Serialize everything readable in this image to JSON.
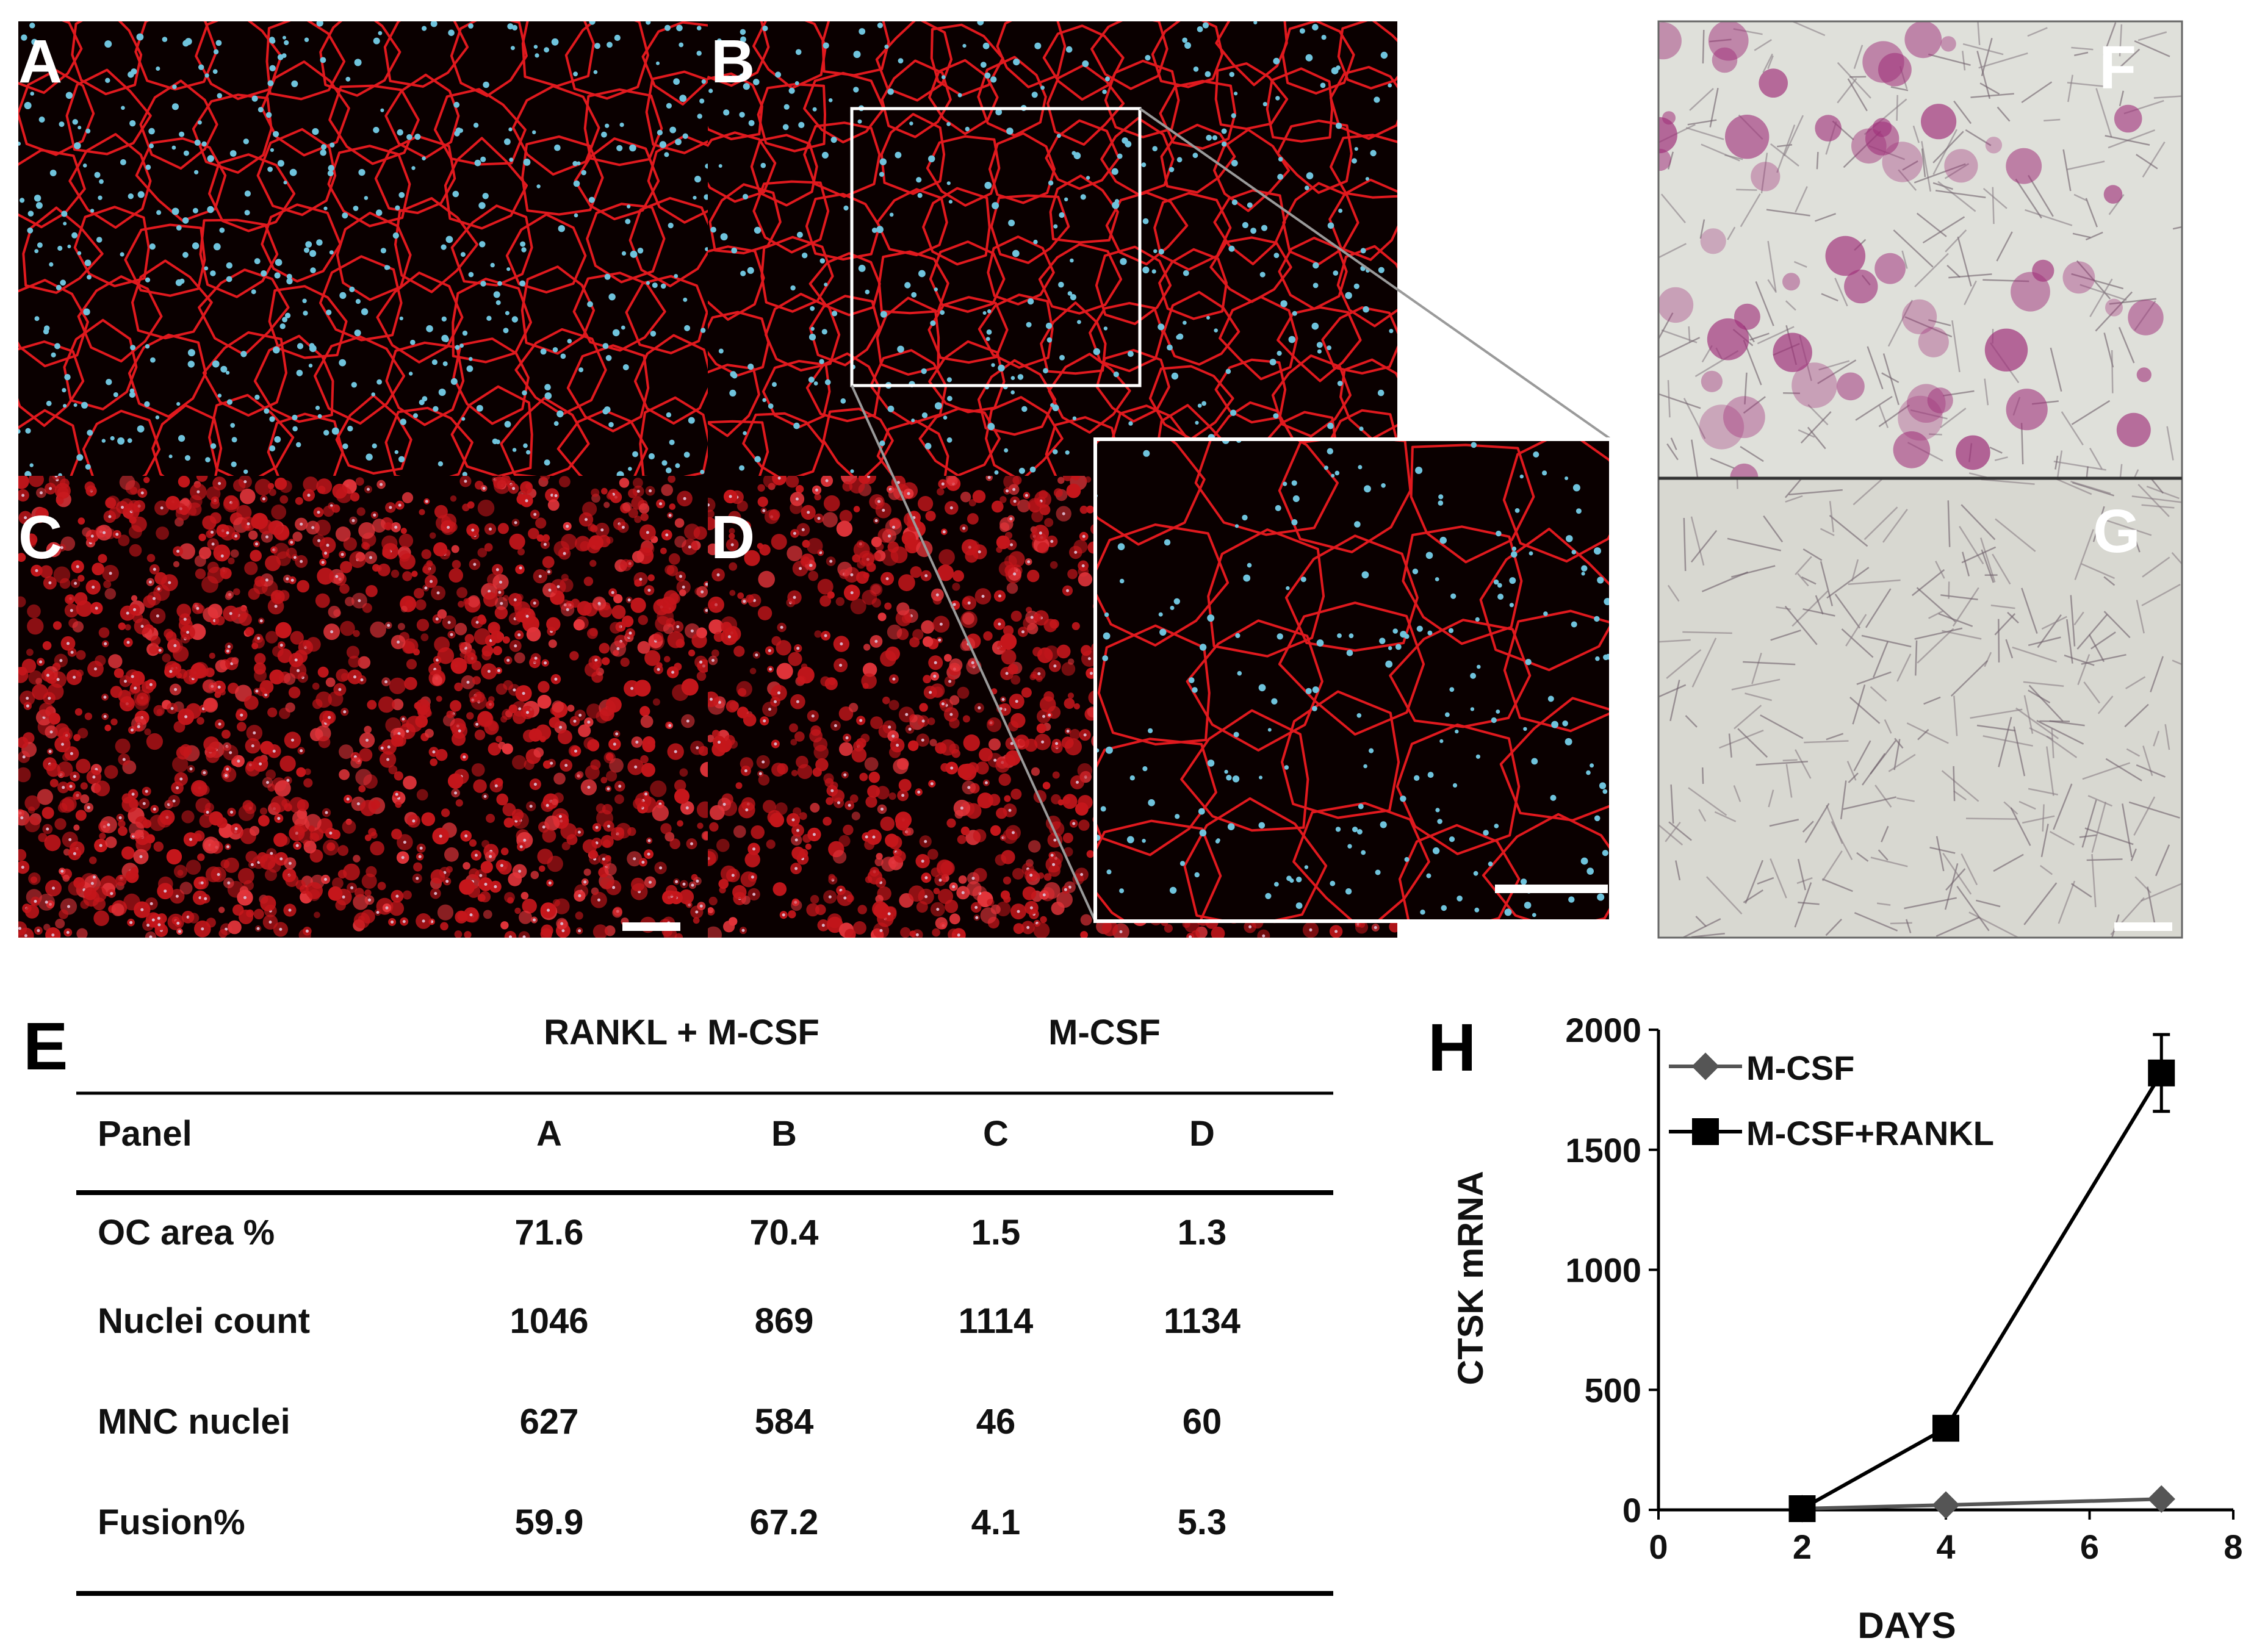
{
  "panels": {
    "a": "A",
    "b": "B",
    "c": "C",
    "d": "D",
    "e": "E",
    "f": "F",
    "g": "G",
    "h": "H"
  },
  "table": {
    "group_headers": [
      "RANKL + M-CSF",
      "M-CSF"
    ],
    "columns": [
      "Panel",
      "A",
      "B",
      "C",
      "D"
    ],
    "rows": [
      {
        "label": "OC area %",
        "values": [
          "71.6",
          "70.4",
          "1.5",
          "1.3"
        ]
      },
      {
        "label": "Nuclei count",
        "values": [
          "1046",
          "869",
          "1114",
          "1134"
        ]
      },
      {
        "label": "MNC nuclei",
        "values": [
          "627",
          "584",
          "46",
          "60"
        ]
      },
      {
        "label": "Fusion%",
        "values": [
          "59.9",
          "67.2",
          "4.1",
          "5.3"
        ]
      }
    ]
  },
  "colors": {
    "membrane": "#e0191e",
    "nuclei": "#6fc3dc",
    "fluor_bg": "#0a0000",
    "trap_stain": "#a0307a",
    "brightfield_bg": "#dfe0da",
    "series_mcsf": "#555555",
    "series_rankl": "#000000"
  },
  "chart_data": {
    "type": "line",
    "xlabel": "DAYS",
    "ylabel": "CTSK mRNA",
    "xlim": [
      0,
      8
    ],
    "ylim": [
      0,
      2000
    ],
    "xticks": [
      0,
      2,
      4,
      6,
      8
    ],
    "yticks": [
      0,
      500,
      1000,
      1500,
      2000
    ],
    "legend_position": "top-left",
    "series": [
      {
        "name": "M-CSF",
        "marker": "diamond",
        "x": [
          2,
          4,
          7
        ],
        "y": [
          5,
          20,
          45
        ]
      },
      {
        "name": "M-CSF+RANKL",
        "marker": "square",
        "x": [
          2,
          4,
          7
        ],
        "y": [
          5,
          340,
          1820
        ],
        "error": [
          0,
          0,
          160
        ]
      }
    ]
  }
}
